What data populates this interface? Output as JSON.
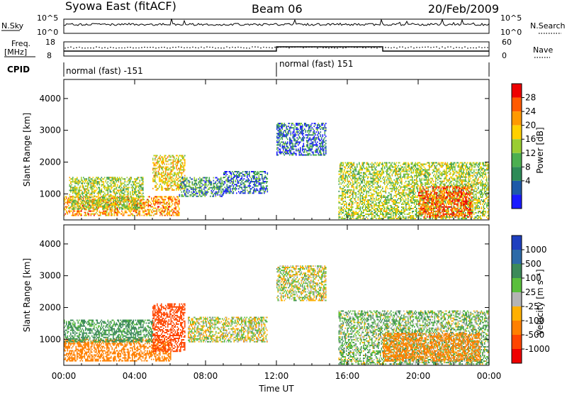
{
  "header": {
    "station": "Syowa East (fitACF)",
    "beam": "Beam 06",
    "date": "20/Feb/2009"
  },
  "noise_panel": {
    "left_label": "N.Sky",
    "left_ticks": [
      "10^5",
      "10^0"
    ],
    "right_ticks": [
      "10^5",
      "10^0"
    ],
    "right_label": "N.Search"
  },
  "freq_panel": {
    "left_label_1": "Freq.",
    "left_label_2": "[MHz]",
    "left_ticks": [
      "18",
      "8"
    ],
    "right_ticks": [
      "60",
      "0"
    ],
    "right_label": "Nave"
  },
  "cpid": {
    "label": "CPID",
    "segments": [
      {
        "start_hour": 0,
        "text": "normal (fast) -151"
      },
      {
        "start_hour": 12,
        "text": "normal (fast) 151"
      }
    ]
  },
  "axes": {
    "ylabel": "Slant Range [km]",
    "yticks": [
      "4000",
      "3000",
      "2000",
      "1000"
    ],
    "xticks": [
      "00:00",
      "04:00",
      "08:00",
      "12:00",
      "16:00",
      "20:00",
      "00:00"
    ],
    "xlabel": "Time UT"
  },
  "power_scale": {
    "label": "Power [dB]",
    "ticks": [
      "28",
      "24",
      "20",
      "16",
      "12",
      "8",
      "4"
    ],
    "colors": [
      "#ee0000",
      "#ff5a00",
      "#ff9900",
      "#ffd000",
      "#9acd32",
      "#4caf50",
      "#2e8b57",
      "#1e5aa8",
      "#1a1aff"
    ]
  },
  "velocity_scale": {
    "label": "Velocity [m s⁻¹]",
    "ticks": [
      "1000",
      "500",
      "100",
      "25",
      "-25",
      "-100",
      "-500",
      "-1000"
    ],
    "colors": [
      "#1e3fbf",
      "#2d6aa8",
      "#3c8a5a",
      "#5abf3c",
      "#b4b4b4",
      "#ffb000",
      "#ff8000",
      "#ff4500",
      "#ee0000"
    ]
  },
  "chart_data": {
    "type": "heatmap",
    "title": "Syowa East (fitACF) Beam 06 20/Feb/2009",
    "xlabel": "Time UT",
    "ylabel": "Slant Range [km]",
    "xlim_hours": [
      0,
      24
    ],
    "ylim_km": [
      180,
      4600
    ],
    "panels": [
      {
        "name": "Power",
        "unit": "dB",
        "scale_ticks": [
          4,
          8,
          12,
          16,
          20,
          24,
          28
        ],
        "regions": [
          {
            "t0": 0.0,
            "t1": 6.5,
            "r0": 300,
            "r1": 900,
            "value": 22
          },
          {
            "t0": 0.3,
            "t1": 4.5,
            "r0": 500,
            "r1": 1500,
            "value": 14
          },
          {
            "t0": 5.0,
            "t1": 6.8,
            "r0": 1100,
            "r1": 2200,
            "value": 18
          },
          {
            "t0": 6.5,
            "t1": 9.0,
            "r0": 900,
            "r1": 1500,
            "value": 8
          },
          {
            "t0": 9.0,
            "t1": 11.5,
            "r0": 1000,
            "r1": 1700,
            "value": 6
          },
          {
            "t0": 12.0,
            "t1": 14.8,
            "r0": 2200,
            "r1": 3200,
            "value": 6
          },
          {
            "t0": 15.5,
            "t1": 24.0,
            "r0": 200,
            "r1": 2000,
            "value": 14
          },
          {
            "t0": 20.0,
            "t1": 23.0,
            "r0": 250,
            "r1": 1200,
            "value": 26
          }
        ]
      },
      {
        "name": "Velocity",
        "unit": "m/s",
        "scale_ticks": [
          -1000,
          -500,
          -100,
          -25,
          25,
          100,
          500,
          1000
        ],
        "regions": [
          {
            "t0": 0.0,
            "t1": 6.0,
            "r0": 300,
            "r1": 1000,
            "value": -300
          },
          {
            "t0": 0.0,
            "t1": 5.0,
            "r0": 900,
            "r1": 1600,
            "value": 150
          },
          {
            "t0": 5.0,
            "t1": 6.8,
            "r0": 600,
            "r1": 2100,
            "value": -700
          },
          {
            "t0": 7.0,
            "t1": 11.5,
            "r0": 900,
            "r1": 1700,
            "value": 0
          },
          {
            "t0": 12.0,
            "t1": 14.8,
            "r0": 2200,
            "r1": 3300,
            "value": 0
          },
          {
            "t0": 15.5,
            "t1": 24.0,
            "r0": 200,
            "r1": 1900,
            "value": 60
          },
          {
            "t0": 18.0,
            "t1": 23.5,
            "r0": 300,
            "r1": 1200,
            "value": -200
          }
        ]
      }
    ]
  }
}
